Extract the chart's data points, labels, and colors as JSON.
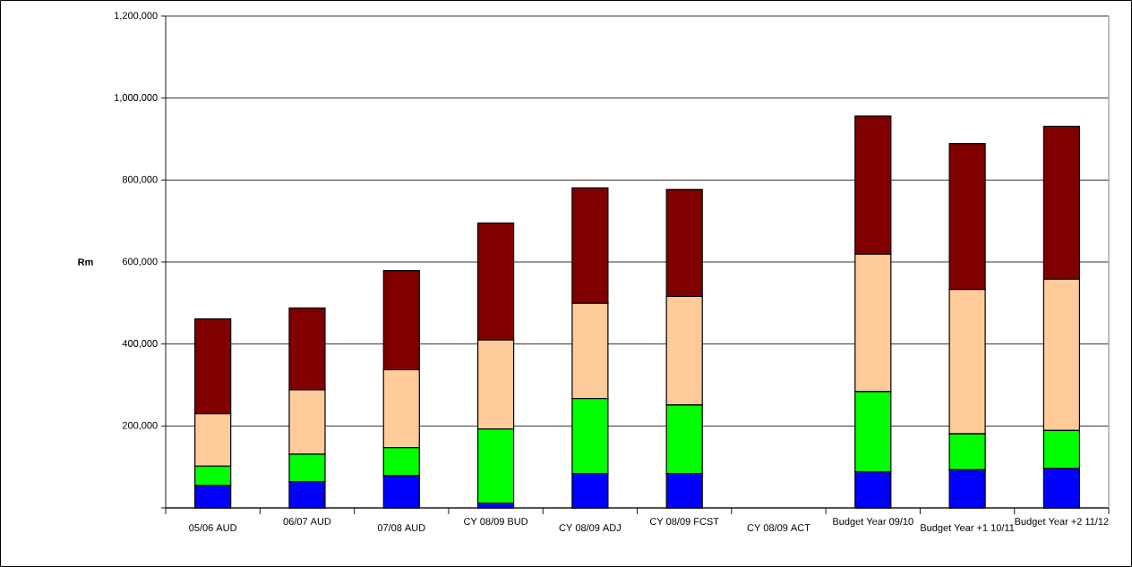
{
  "chart_data": {
    "type": "bar",
    "stacked": true,
    "ylabel": "Rm",
    "categories": [
      "05/06 AUD",
      "06/07 AUD",
      "07/08 AUD",
      "CY 08/09 BUD",
      "CY 08/09 ADJ",
      "CY 08/09 FCST",
      "CY 08/09 ACT",
      "Budget Year 09/10",
      "Budget Year +1 10/11",
      "Budget Year +2 11/12"
    ],
    "series": [
      {
        "color": "#0000ff",
        "values": [
          55000,
          64000,
          79000,
          12000,
          84000,
          84000,
          null,
          88000,
          93000,
          97000
        ]
      },
      {
        "color": "#00ff00",
        "values": [
          47000,
          67000,
          68000,
          181000,
          183000,
          167000,
          null,
          196000,
          88000,
          92000
        ]
      },
      {
        "color": "#ffcc99",
        "values": [
          128000,
          157000,
          190000,
          217000,
          232000,
          265000,
          null,
          335000,
          352000,
          369000
        ]
      },
      {
        "color": "#800000",
        "values": [
          231000,
          200000,
          242000,
          285000,
          282000,
          261000,
          null,
          337000,
          356000,
          373000
        ]
      }
    ],
    "ylim": [
      0,
      1200000
    ],
    "yticks": [
      {
        "value": 0,
        "label": null
      },
      {
        "value": 200000,
        "label": "200,000"
      },
      {
        "value": 400000,
        "label": "400,000"
      },
      {
        "value": 600000,
        "label": "600,000"
      },
      {
        "value": 800000,
        "label": "800,000"
      },
      {
        "value": 1000000,
        "label": "1,000,000"
      },
      {
        "value": 1200000,
        "label": "1,200,000"
      }
    ],
    "grid": "y"
  }
}
